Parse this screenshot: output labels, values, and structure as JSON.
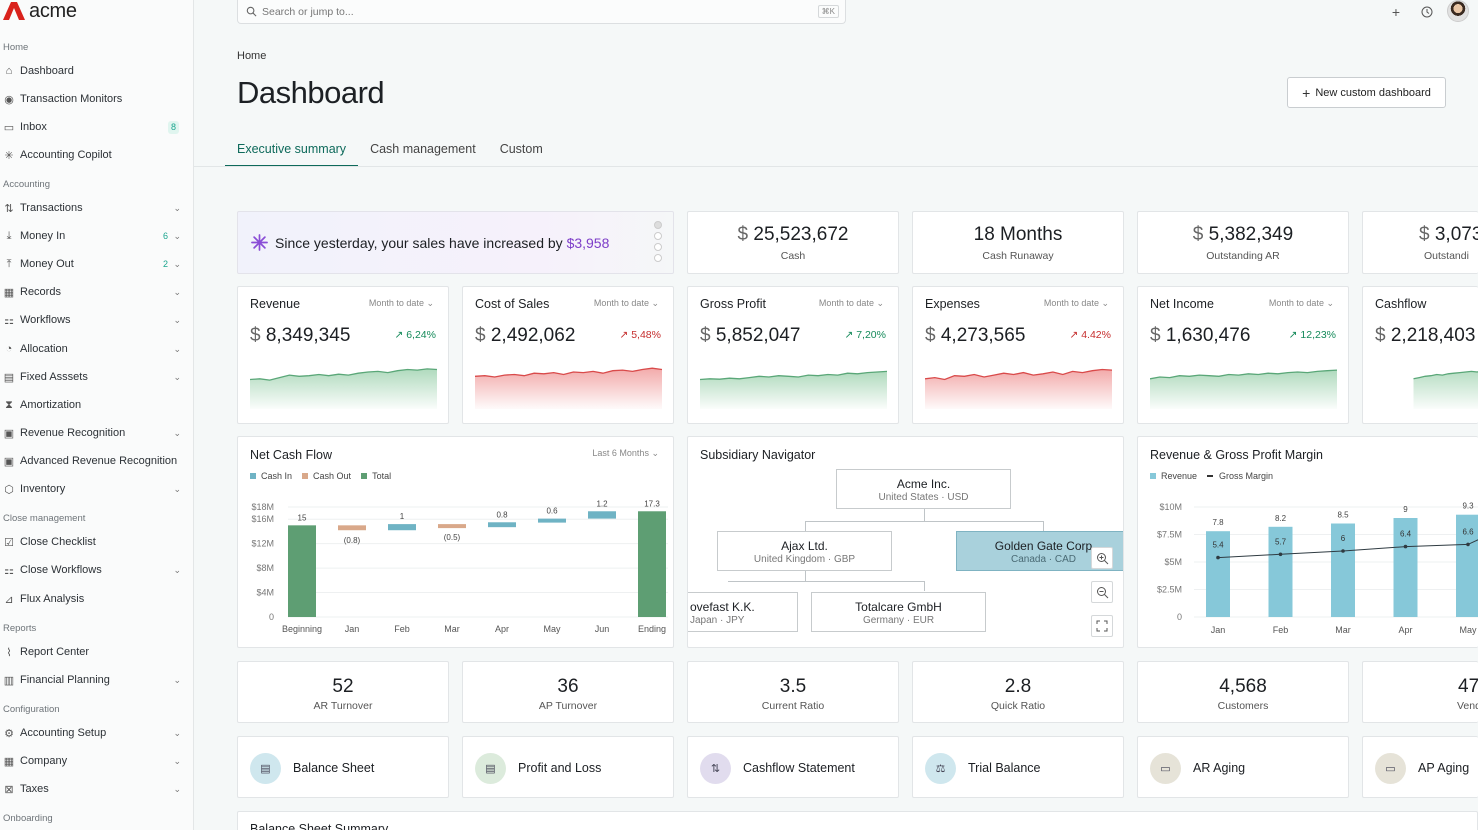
{
  "app": {
    "name": "acme"
  },
  "sidebar": {
    "sections": [
      {
        "label": "Home"
      },
      {
        "label": "Accounting"
      },
      {
        "label": "Close management"
      },
      {
        "label": "Reports"
      },
      {
        "label": "Configuration"
      },
      {
        "label": "Onboarding"
      }
    ],
    "items": [
      {
        "label": "Dashboard",
        "icon": "home-icon"
      },
      {
        "label": "Transaction Monitors",
        "icon": "monitor-icon"
      },
      {
        "label": "Inbox",
        "icon": "inbox-icon",
        "count": "8"
      },
      {
        "label": "Accounting Copilot",
        "icon": "sparkle-icon"
      },
      {
        "label": "Transactions",
        "icon": "transfer-icon"
      },
      {
        "label": "Money In",
        "icon": "download-icon",
        "count": "6"
      },
      {
        "label": "Money Out",
        "icon": "upload-icon",
        "count": "2"
      },
      {
        "label": "Records",
        "icon": "records-icon"
      },
      {
        "label": "Workflows",
        "icon": "workflow-icon"
      },
      {
        "label": "Allocation",
        "icon": "allocation-icon"
      },
      {
        "label": "Fixed Asssets",
        "icon": "building-icon"
      },
      {
        "label": "Amortization",
        "icon": "hourglass-icon"
      },
      {
        "label": "Revenue Recognition",
        "icon": "calendar-icon"
      },
      {
        "label": "Advanced Revenue Recognition",
        "icon": "calendar-icon"
      },
      {
        "label": "Inventory",
        "icon": "box-icon"
      },
      {
        "label": "Close Checklist",
        "icon": "checklist-icon"
      },
      {
        "label": "Close Workflows",
        "icon": "workflow-icon"
      },
      {
        "label": "Flux Analysis",
        "icon": "chart-icon"
      },
      {
        "label": "Report Center",
        "icon": "report-icon"
      },
      {
        "label": "Financial Planning",
        "icon": "planning-icon"
      },
      {
        "label": "Accounting Setup",
        "icon": "setup-icon"
      },
      {
        "label": "Company",
        "icon": "company-icon"
      },
      {
        "label": "Taxes",
        "icon": "tax-icon"
      }
    ]
  },
  "topbar": {
    "search_placeholder": "Search or jump to...",
    "shortcut": "⌘K"
  },
  "page": {
    "breadcrumb": "Home",
    "title": "Dashboard",
    "new_dashboard_label": "New custom dashboard"
  },
  "tabs": [
    {
      "label": "Executive summary"
    },
    {
      "label": "Cash management"
    },
    {
      "label": "Custom"
    }
  ],
  "alert": {
    "text": "Since yesterday, your sales have increased by ",
    "amount": "$3,958"
  },
  "kpis": [
    {
      "currency": "$",
      "value": "25,523,672",
      "label": "Cash"
    },
    {
      "currency": "",
      "value": "18 Months",
      "label": "Cash Runaway"
    },
    {
      "currency": "$",
      "value": "5,382,349",
      "label": "Outstanding AR"
    },
    {
      "currency": "$",
      "value": "3,073",
      "label": "Outstandi"
    }
  ],
  "metrics": [
    {
      "title": "Revenue",
      "filter": "Month to date",
      "currency": "$",
      "value": "8,349,345",
      "change": "↗ 6,24%",
      "trend": "up",
      "series": [
        0.72,
        0.7,
        0.74,
        0.66,
        0.58,
        0.62,
        0.6,
        0.56,
        0.6,
        0.55,
        0.58,
        0.52,
        0.48,
        0.46,
        0.5,
        0.44,
        0.4,
        0.42,
        0.38,
        0.4
      ]
    },
    {
      "title": "Cost of Sales",
      "filter": "Month to date",
      "currency": "$",
      "value": "2,492,062",
      "change": "↗ 5,48%",
      "trend": "down",
      "series": [
        0.62,
        0.6,
        0.64,
        0.58,
        0.56,
        0.6,
        0.52,
        0.54,
        0.5,
        0.56,
        0.48,
        0.5,
        0.46,
        0.52,
        0.44,
        0.42,
        0.46,
        0.4,
        0.36,
        0.4
      ]
    },
    {
      "title": "Gross Profit",
      "filter": "Month to date",
      "currency": "$",
      "value": "5,852,047",
      "change": "↗ 7,20%",
      "trend": "up",
      "series": [
        0.72,
        0.7,
        0.71,
        0.68,
        0.7,
        0.66,
        0.62,
        0.64,
        0.6,
        0.62,
        0.64,
        0.58,
        0.6,
        0.56,
        0.58,
        0.52,
        0.54,
        0.5,
        0.48,
        0.46
      ]
    },
    {
      "title": "Expenses",
      "filter": "Month to date",
      "currency": "$",
      "value": "4,273,565",
      "change": "↗ 4.42%",
      "trend": "down",
      "series": [
        0.7,
        0.66,
        0.72,
        0.6,
        0.62,
        0.56,
        0.64,
        0.58,
        0.52,
        0.56,
        0.5,
        0.58,
        0.54,
        0.48,
        0.56,
        0.46,
        0.5,
        0.44,
        0.4,
        0.42
      ]
    },
    {
      "title": "Net Income",
      "filter": "Month to date",
      "currency": "$",
      "value": "1,630,476",
      "change": "↗ 12,23%",
      "trend": "up",
      "series": [
        0.7,
        0.64,
        0.66,
        0.6,
        0.62,
        0.58,
        0.6,
        0.62,
        0.56,
        0.58,
        0.54,
        0.56,
        0.52,
        0.54,
        0.5,
        0.48,
        0.5,
        0.46,
        0.44,
        0.42
      ]
    },
    {
      "title": "Cashflow",
      "filter": "",
      "currency": "$",
      "value": "2,218,403",
      "change": "",
      "trend": "up",
      "series": [
        0.7,
        0.66,
        0.62,
        0.6,
        0.56,
        0.58,
        0.54,
        0.52,
        0.5,
        0.48,
        0.46,
        0.48,
        0.44,
        0.42,
        0.4,
        0.38,
        0.4,
        0.36,
        0.34,
        0.32
      ]
    }
  ],
  "net_cash_flow": {
    "title": "Net Cash Flow",
    "filter": "Last 6 Months"
  },
  "subsidiary": {
    "title": "Subsidiary Navigator",
    "nodes": [
      {
        "name": "Acme Inc.",
        "sub": "United States · USD"
      },
      {
        "name": "Ajax Ltd.",
        "sub": "United Kingdom · GBP"
      },
      {
        "name": "Golden Gate Corp",
        "sub": "Canada · CAD"
      },
      {
        "name": "ovefast K.K.",
        "sub": "Japan · JPY"
      },
      {
        "name": "Totalcare GmbH",
        "sub": "Germany · EUR"
      }
    ]
  },
  "revenue_margin": {
    "title": "Revenue & Gross Profit Margin"
  },
  "ratios": [
    {
      "value": "52",
      "label": "AR Turnover"
    },
    {
      "value": "36",
      "label": "AP Turnover"
    },
    {
      "value": "3.5",
      "label": "Current Ratio"
    },
    {
      "value": "2.8",
      "label": "Quick Ratio"
    },
    {
      "value": "4,568",
      "label": "Customers"
    },
    {
      "value": "47",
      "label": "Vendo"
    }
  ],
  "reports": [
    {
      "label": "Balance Sheet",
      "icon": "document-icon",
      "color": "#cfe7ee"
    },
    {
      "label": "Profit and Loss",
      "icon": "document-icon",
      "color": "#dcebdc"
    },
    {
      "label": "Cashflow Statement",
      "icon": "arrows-icon",
      "color": "#e1dcee"
    },
    {
      "label": "Trial Balance",
      "icon": "scale-icon",
      "color": "#cfe7ee"
    },
    {
      "label": "AR Aging",
      "icon": "ledger-icon",
      "color": "#e6e3d8"
    },
    {
      "label": "AP Aging",
      "icon": "ledger-icon",
      "color": "#e6e3d8"
    }
  ],
  "footer_peek": {
    "label": "Balance Sheet Summary"
  },
  "chart_data": [
    {
      "type": "bar",
      "title": "Net Cash Flow",
      "series": [
        {
          "name": "Cash In"
        },
        {
          "name": "Cash Out"
        },
        {
          "name": "Total"
        }
      ],
      "categories": [
        "Beginning",
        "Jan",
        "Feb",
        "Mar",
        "Apr",
        "May",
        "Jun",
        "Ending"
      ],
      "values": [
        15,
        -0.8,
        1,
        -0.5,
        0.8,
        0.6,
        1.2,
        17.3
      ],
      "data_labels": [
        "15",
        "(0.8)",
        "1",
        "(0.5)",
        "0.8",
        "0.6",
        "1.2",
        "17.3"
      ],
      "y_ticks": [
        "0",
        "$4M",
        "$8M",
        "$12M",
        "$16M",
        "$18M"
      ],
      "ylim": [
        0,
        18
      ],
      "legend": "top-left",
      "colors": {
        "Cash In": "#6fb3c4",
        "Cash Out": "#d9a88a",
        "Total": "#5e9e73"
      }
    },
    {
      "type": "bar",
      "title": "Revenue & Gross Profit Margin",
      "categories": [
        "Jan",
        "Feb",
        "Mar",
        "Apr",
        "May"
      ],
      "series": [
        {
          "name": "Revenue",
          "values": [
            7.8,
            8.2,
            8.5,
            9,
            9.3
          ],
          "colorx": "#86c8d9"
        },
        {
          "name": "Gross Margin",
          "values": [
            5.4,
            5.7,
            6.0,
            6.4,
            6.6
          ],
          "type": "line"
        }
      ],
      "y_ticks": [
        "0",
        "$2.5M",
        "$5M",
        "$7.5M",
        "$10M"
      ],
      "ylim": [
        0,
        10
      ],
      "legend": "top-left"
    }
  ]
}
